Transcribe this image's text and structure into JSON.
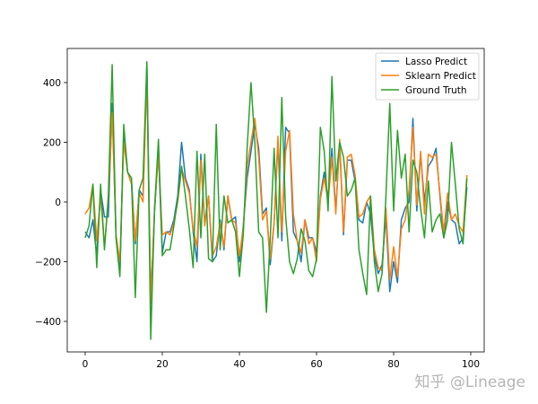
{
  "chart_data": {
    "type": "line",
    "title": "",
    "xlabel": "",
    "ylabel": "",
    "xlim": [
      -5,
      104
    ],
    "ylim": [
      -510,
      520
    ],
    "xticks": [
      0,
      20,
      40,
      60,
      80,
      100
    ],
    "yticks": [
      -400,
      -200,
      0,
      200,
      400
    ],
    "grid": false,
    "legend_position": "upper right",
    "x": [
      0,
      1,
      2,
      3,
      4,
      5,
      6,
      7,
      8,
      9,
      10,
      11,
      12,
      13,
      14,
      15,
      16,
      17,
      18,
      19,
      20,
      21,
      22,
      23,
      24,
      25,
      26,
      27,
      28,
      29,
      30,
      31,
      32,
      33,
      34,
      35,
      36,
      37,
      38,
      39,
      40,
      41,
      42,
      43,
      44,
      45,
      46,
      47,
      48,
      49,
      50,
      51,
      52,
      53,
      54,
      55,
      56,
      57,
      58,
      59,
      60,
      61,
      62,
      63,
      64,
      65,
      66,
      67,
      68,
      69,
      70,
      71,
      72,
      73,
      74,
      75,
      76,
      77,
      78,
      79,
      80,
      81,
      82,
      83,
      84,
      85,
      86,
      87,
      88,
      89,
      90,
      91,
      92,
      93,
      94,
      95,
      96,
      97,
      98,
      99
    ],
    "series": [
      {
        "name": "Lasso Predict",
        "color": "#1f77b4",
        "values": [
          -100,
          -120,
          -60,
          -180,
          40,
          -50,
          -50,
          330,
          -120,
          -240,
          240,
          100,
          80,
          -140,
          40,
          20,
          460,
          -330,
          -30,
          170,
          -170,
          -100,
          -100,
          -60,
          20,
          200,
          80,
          40,
          -100,
          -200,
          160,
          -70,
          20,
          -200,
          -180,
          -60,
          -160,
          20,
          -60,
          -50,
          -200,
          -80,
          80,
          170,
          260,
          180,
          -40,
          -20,
          -210,
          -70,
          200,
          -130,
          250,
          230,
          -100,
          -130,
          -200,
          -60,
          -120,
          -120,
          -170,
          20,
          100,
          10,
          180,
          -30,
          200,
          -110,
          140,
          140,
          70,
          -60,
          -70,
          0,
          -40,
          -180,
          -240,
          -210,
          -50,
          -300,
          -200,
          -270,
          -60,
          -20,
          0,
          280,
          -30,
          160,
          0,
          120,
          140,
          180,
          20,
          -120,
          0,
          -60,
          -70,
          -140,
          -120,
          50
        ]
      },
      {
        "name": "Sklearn Predict",
        "color": "#ff7f0e",
        "values": [
          -40,
          -20,
          60,
          -130,
          20,
          -150,
          10,
          300,
          -110,
          -200,
          200,
          100,
          60,
          -130,
          30,
          0,
          420,
          -340,
          -20,
          160,
          -110,
          -100,
          -110,
          -70,
          0,
          110,
          70,
          30,
          -90,
          -150,
          140,
          -80,
          20,
          -180,
          -150,
          -70,
          -150,
          20,
          -60,
          -70,
          -180,
          -90,
          120,
          200,
          280,
          150,
          -60,
          -30,
          -190,
          -70,
          220,
          -100,
          170,
          240,
          -40,
          -130,
          -170,
          -60,
          -140,
          -120,
          -200,
          10,
          80,
          0,
          150,
          -40,
          210,
          -100,
          150,
          160,
          90,
          -50,
          -40,
          0,
          20,
          -160,
          -220,
          -230,
          -20,
          -260,
          -150,
          -250,
          -90,
          -60,
          40,
          250,
          -10,
          170,
          -40,
          160,
          150,
          160,
          30,
          -100,
          30,
          -60,
          -40,
          -80,
          -100,
          90
        ]
      },
      {
        "name": "Ground Truth",
        "color": "#2ca02c",
        "values": [
          -120,
          -80,
          60,
          -220,
          60,
          -160,
          20,
          460,
          -120,
          -250,
          260,
          100,
          80,
          -320,
          40,
          80,
          470,
          -460,
          -20,
          210,
          -180,
          -160,
          -160,
          -80,
          10,
          120,
          20,
          -90,
          -220,
          170,
          -120,
          160,
          -190,
          -200,
          260,
          -160,
          20,
          -70,
          -60,
          -100,
          -250,
          -110,
          180,
          400,
          200,
          -100,
          -120,
          -370,
          -120,
          180,
          -120,
          350,
          -50,
          -200,
          -240,
          -190,
          -90,
          -130,
          -230,
          -250,
          -190,
          250,
          170,
          -30,
          420,
          70,
          200,
          150,
          20,
          40,
          80,
          -160,
          -240,
          -310,
          20,
          -200,
          -300,
          -240,
          20,
          330,
          -30,
          240,
          80,
          160,
          -100,
          140,
          100,
          -20,
          -120,
          70,
          -100,
          -60,
          -40,
          -120,
          -60,
          200,
          60,
          -90,
          -140,
          80
        ]
      }
    ]
  },
  "legend": {
    "items": [
      {
        "label": "Lasso Predict",
        "color": "#1f77b4"
      },
      {
        "label": "Sklearn Predict",
        "color": "#ff7f0e"
      },
      {
        "label": "Ground Truth",
        "color": "#2ca02c"
      }
    ]
  },
  "watermark": "知乎 @Lineage"
}
